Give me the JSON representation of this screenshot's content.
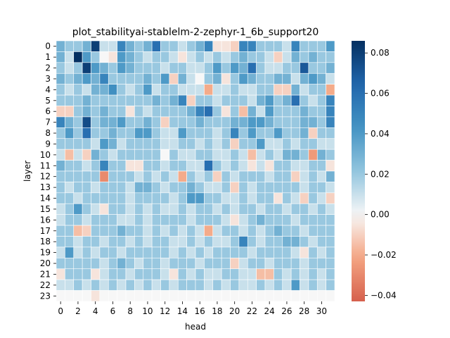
{
  "chart_data": {
    "type": "heatmap",
    "title": "plot_stabilityai-stablelm-2-zephyr-1_6b_support20",
    "xlabel": "head",
    "ylabel": "layer",
    "x_tick_labels": [
      "0",
      "2",
      "4",
      "6",
      "8",
      "10",
      "12",
      "14",
      "16",
      "18",
      "20",
      "22",
      "24",
      "26",
      "28",
      "30"
    ],
    "y_tick_labels": [
      "0",
      "1",
      "2",
      "3",
      "4",
      "5",
      "6",
      "7",
      "8",
      "9",
      "10",
      "11",
      "12",
      "13",
      "14",
      "15",
      "16",
      "17",
      "18",
      "19",
      "20",
      "21",
      "22",
      "23"
    ],
    "n_rows": 24,
    "n_cols": 32,
    "vmin": -0.043,
    "vmax": 0.086,
    "colormap": "RdBu_r (centered at 0)",
    "colorbar_ticks": [
      "−0.04",
      "−0.02",
      "0.00",
      "0.02",
      "0.04",
      "0.06",
      "0.08"
    ],
    "colorbar_tick_values": [
      -0.04,
      -0.02,
      0.0,
      0.02,
      0.04,
      0.06,
      0.08
    ],
    "values": [
      [
        0.03,
        0.02,
        0.02,
        0.03,
        0.08,
        0.01,
        0.01,
        0.05,
        0.03,
        0.02,
        0.03,
        0.06,
        0.02,
        0.02,
        0.01,
        0.02,
        0.03,
        0.05,
        -0.005,
        -0.005,
        -0.01,
        0.05,
        0.05,
        0.02,
        0.02,
        0.02,
        0.01,
        0.05,
        0.02,
        0.02,
        0.02,
        0.04
      ],
      [
        0.03,
        0.01,
        0.086,
        0.04,
        0.02,
        0.0,
        -0.005,
        0.04,
        0.03,
        0.02,
        0.01,
        0.02,
        0.02,
        0.01,
        -0.005,
        0.01,
        0.02,
        0.01,
        0.02,
        0.01,
        0.02,
        0.03,
        0.02,
        0.02,
        0.01,
        -0.01,
        0.01,
        0.03,
        0.02,
        0.03,
        0.02,
        0.02
      ],
      [
        0.02,
        0.01,
        0.02,
        0.08,
        0.04,
        0.03,
        0.02,
        0.04,
        0.03,
        0.02,
        0.02,
        0.02,
        0.01,
        0.02,
        0.02,
        0.01,
        0.01,
        0.02,
        0.04,
        0.02,
        0.04,
        0.03,
        0.06,
        0.02,
        0.01,
        0.01,
        0.02,
        0.02,
        0.07,
        0.02,
        0.02,
        0.03
      ],
      [
        0.03,
        0.02,
        0.03,
        0.04,
        0.03,
        0.05,
        0.02,
        0.02,
        0.02,
        0.02,
        0.03,
        0.02,
        0.04,
        -0.01,
        0.03,
        0.01,
        0.0,
        0.02,
        0.03,
        -0.005,
        0.02,
        0.04,
        0.03,
        0.02,
        0.02,
        0.03,
        0.03,
        0.01,
        0.03,
        0.04,
        0.03,
        0.01
      ],
      [
        0.02,
        0.01,
        0.02,
        0.01,
        0.03,
        0.03,
        0.045,
        0.02,
        0.01,
        0.02,
        0.04,
        0.01,
        0.02,
        0.02,
        0.01,
        0.01,
        0.01,
        -0.02,
        0.01,
        0.01,
        0.02,
        0.01,
        0.01,
        0.02,
        0.02,
        -0.01,
        -0.01,
        0.03,
        0.01,
        0.02,
        0.02,
        -0.02
      ],
      [
        0.02,
        0.02,
        0.02,
        0.03,
        0.02,
        0.02,
        0.02,
        0.02,
        0.02,
        0.02,
        0.02,
        0.03,
        0.02,
        0.03,
        0.05,
        -0.01,
        0.02,
        0.02,
        0.01,
        0.02,
        0.02,
        0.02,
        0.01,
        0.03,
        0.04,
        0.02,
        0.03,
        0.06,
        0.02,
        0.01,
        0.02,
        0.05
      ],
      [
        -0.01,
        -0.01,
        0.02,
        0.03,
        0.02,
        0.03,
        0.02,
        0.02,
        -0.005,
        0.02,
        0.01,
        0.02,
        0.02,
        0.02,
        0.02,
        0.03,
        0.05,
        0.06,
        0.02,
        -0.005,
        0.02,
        -0.015,
        0.03,
        0.01,
        0.04,
        0.02,
        0.02,
        0.02,
        0.03,
        0.02,
        0.02,
        0.05
      ],
      [
        0.05,
        0.03,
        0.02,
        0.075,
        0.02,
        0.03,
        0.03,
        0.04,
        0.02,
        0.02,
        0.03,
        0.02,
        -0.01,
        0.02,
        0.02,
        0.02,
        0.03,
        0.02,
        0.02,
        0.02,
        0.03,
        0.03,
        0.04,
        0.04,
        0.03,
        0.02,
        0.02,
        0.02,
        0.03,
        0.03,
        0.02,
        0.05
      ],
      [
        0.02,
        0.04,
        0.02,
        0.06,
        0.02,
        0.02,
        0.03,
        0.02,
        0.02,
        0.04,
        0.04,
        0.02,
        0.01,
        0.01,
        0.04,
        0.02,
        0.02,
        0.02,
        0.01,
        0.02,
        0.05,
        0.02,
        0.04,
        0.02,
        0.02,
        0.04,
        0.02,
        0.02,
        0.03,
        -0.01,
        0.02,
        0.02
      ],
      [
        0.02,
        0.02,
        0.02,
        0.02,
        0.01,
        0.04,
        0.03,
        0.01,
        0.02,
        0.02,
        0.02,
        0.02,
        0.01,
        0.01,
        0.02,
        0.02,
        0.01,
        0.02,
        0.01,
        0.02,
        -0.01,
        0.02,
        0.02,
        0.04,
        0.01,
        0.01,
        0.02,
        0.01,
        0.02,
        0.02,
        0.01,
        0.01
      ],
      [
        0.01,
        -0.015,
        0.01,
        -0.01,
        0.03,
        0.02,
        0.01,
        0.02,
        0.02,
        0.02,
        0.02,
        0.02,
        0.0,
        0.02,
        0.01,
        0.01,
        0.02,
        0.02,
        0.01,
        0.01,
        0.02,
        0.01,
        -0.015,
        0.01,
        0.02,
        0.01,
        0.03,
        0.03,
        0.02,
        -0.025,
        0.03,
        0.02
      ],
      [
        0.03,
        0.02,
        0.02,
        0.01,
        0.02,
        0.05,
        0.02,
        0.02,
        -0.005,
        -0.005,
        0.02,
        0.02,
        0.01,
        0.02,
        0.02,
        0.01,
        0.01,
        0.06,
        0.02,
        0.01,
        0.02,
        0.01,
        -0.005,
        0.01,
        -0.005,
        0.02,
        0.02,
        0.01,
        0.01,
        0.02,
        0.02,
        -0.005
      ],
      [
        0.02,
        0.02,
        0.02,
        0.02,
        0.02,
        -0.03,
        0.02,
        0.02,
        0.02,
        0.01,
        0.02,
        0.01,
        0.02,
        0.01,
        -0.02,
        0.02,
        0.01,
        0.02,
        -0.01,
        0.02,
        0.01,
        0.02,
        0.02,
        0.02,
        0.01,
        0.02,
        0.02,
        -0.01,
        0.01,
        0.02,
        0.01,
        0.03
      ],
      [
        0.02,
        0.01,
        0.02,
        0.02,
        0.01,
        0.02,
        0.02,
        0.02,
        0.01,
        0.03,
        0.03,
        0.02,
        0.01,
        0.02,
        0.02,
        0.03,
        0.02,
        0.01,
        0.01,
        0.02,
        -0.01,
        0.02,
        0.01,
        0.02,
        0.02,
        0.02,
        0.02,
        0.02,
        0.01,
        0.02,
        0.02,
        0.01
      ],
      [
        0.02,
        0.02,
        0.01,
        0.02,
        0.02,
        0.02,
        0.02,
        0.02,
        0.01,
        0.02,
        0.02,
        0.02,
        0.02,
        0.01,
        0.02,
        0.04,
        0.04,
        0.02,
        0.02,
        0.01,
        0.01,
        0.02,
        0.01,
        0.02,
        0.02,
        -0.005,
        0.02,
        0.01,
        -0.01,
        0.02,
        0.01,
        -0.01
      ],
      [
        0.01,
        0.02,
        0.04,
        0.02,
        0.01,
        -0.005,
        0.02,
        0.02,
        0.01,
        0.02,
        0.01,
        0.02,
        0.01,
        0.01,
        0.02,
        0.01,
        0.02,
        0.02,
        0.01,
        0.02,
        0.01,
        0.02,
        0.02,
        0.01,
        0.02,
        0.02,
        0.01,
        0.02,
        0.02,
        0.01,
        0.02,
        0.01
      ],
      [
        0.01,
        0.02,
        0.02,
        0.01,
        0.02,
        0.02,
        0.02,
        0.01,
        0.01,
        0.02,
        0.01,
        0.02,
        0.02,
        0.02,
        0.02,
        0.01,
        0.02,
        0.02,
        0.02,
        0.01,
        -0.005,
        0.01,
        0.02,
        0.03,
        0.02,
        0.02,
        0.02,
        0.01,
        0.02,
        0.02,
        0.02,
        0.02
      ],
      [
        0.02,
        0.02,
        -0.015,
        -0.01,
        0.02,
        0.02,
        0.02,
        0.03,
        0.02,
        0.02,
        0.01,
        0.02,
        0.01,
        0.02,
        0.01,
        0.02,
        0.01,
        -0.02,
        0.01,
        0.02,
        0.02,
        0.01,
        0.02,
        0.01,
        0.02,
        0.03,
        0.02,
        0.02,
        0.01,
        0.02,
        0.02,
        0.02
      ],
      [
        0.02,
        0.02,
        0.01,
        0.02,
        0.02,
        0.01,
        0.02,
        0.02,
        0.01,
        0.02,
        0.01,
        0.02,
        0.02,
        0.01,
        0.01,
        0.02,
        0.01,
        0.02,
        0.01,
        0.01,
        0.02,
        0.05,
        0.02,
        0.01,
        0.02,
        0.02,
        0.03,
        0.03,
        0.02,
        0.01,
        0.02,
        0.02
      ],
      [
        0.01,
        0.04,
        0.01,
        0.02,
        0.01,
        0.02,
        0.02,
        0.01,
        0.02,
        0.02,
        0.02,
        0.02,
        0.02,
        0.01,
        0.02,
        0.01,
        0.02,
        0.01,
        0.02,
        0.02,
        0.02,
        0.02,
        0.01,
        0.02,
        0.02,
        0.02,
        0.02,
        0.01,
        -0.005,
        0.02,
        0.01,
        0.02
      ],
      [
        0.02,
        0.02,
        0.02,
        0.02,
        0.02,
        0.01,
        0.02,
        0.03,
        0.02,
        0.01,
        0.02,
        0.02,
        0.01,
        0.02,
        0.02,
        0.02,
        0.01,
        0.02,
        0.02,
        0.02,
        -0.01,
        0.01,
        0.02,
        0.02,
        0.01,
        0.02,
        0.02,
        0.02,
        0.01,
        0.02,
        0.02,
        0.02
      ],
      [
        -0.005,
        0.02,
        0.02,
        0.02,
        -0.005,
        0.01,
        0.02,
        0.02,
        0.01,
        0.02,
        0.02,
        0.02,
        0.01,
        -0.005,
        0.02,
        0.01,
        0.02,
        0.01,
        0.01,
        0.02,
        0.02,
        0.01,
        0.01,
        -0.015,
        -0.015,
        0.02,
        0.01,
        0.02,
        0.01,
        0.02,
        0.01,
        0.02
      ],
      [
        0.01,
        0.01,
        0.02,
        0.01,
        0.02,
        0.01,
        0.02,
        0.01,
        0.02,
        0.01,
        0.02,
        0.01,
        0.02,
        0.01,
        0.02,
        0.02,
        0.02,
        0.01,
        0.02,
        0.01,
        0.02,
        0.01,
        0.01,
        0.02,
        0.01,
        0.02,
        0.01,
        0.04,
        0.01,
        0.02,
        0.01,
        0.02
      ],
      [
        0.0,
        0.0,
        0.0,
        0.0,
        -0.005,
        0.0,
        0.0,
        0.0,
        0.0,
        0.0,
        0.0,
        0.0,
        0.0,
        0.0,
        0.0,
        0.0,
        0.0,
        0.0,
        0.0,
        0.0,
        0.0,
        0.0,
        0.0,
        0.0,
        0.0,
        0.0,
        0.0,
        0.0,
        0.0,
        0.0,
        0.0,
        0.0
      ]
    ]
  }
}
